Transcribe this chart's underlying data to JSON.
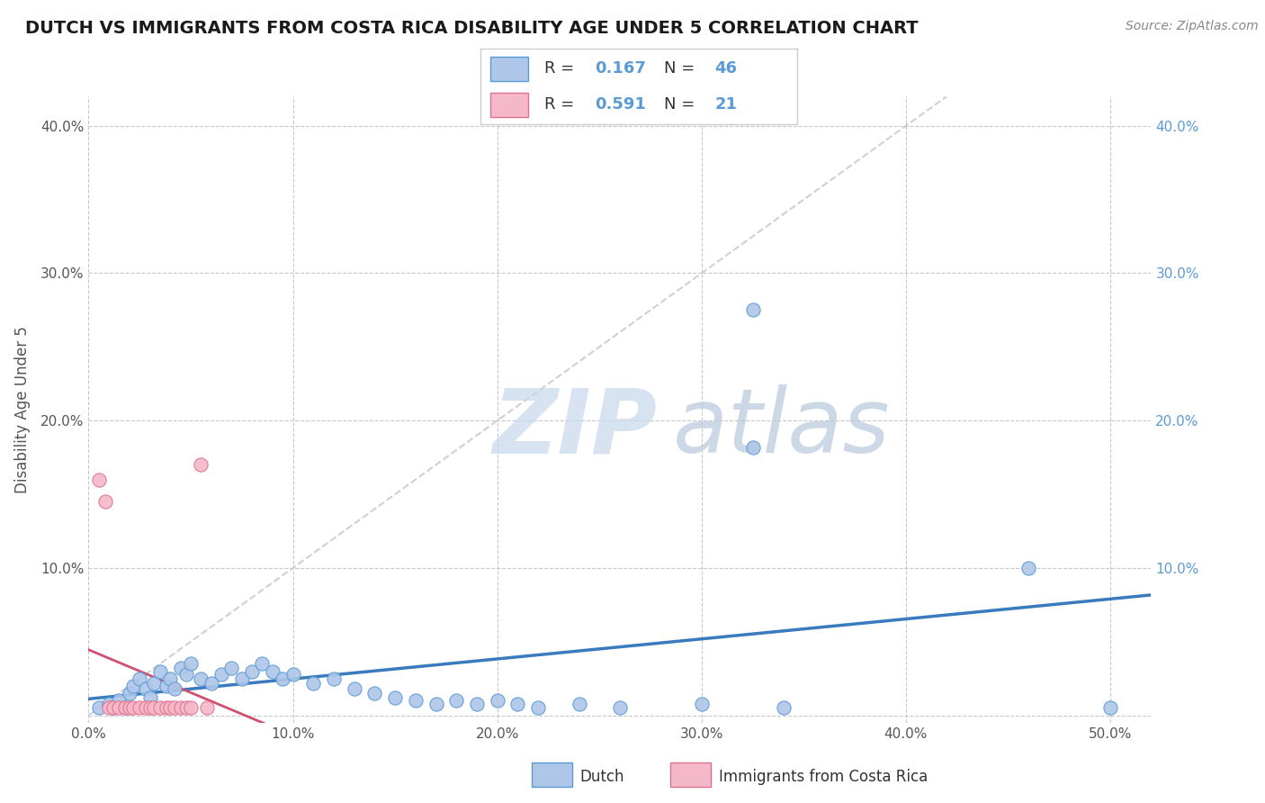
{
  "title": "DUTCH VS IMMIGRANTS FROM COSTA RICA DISABILITY AGE UNDER 5 CORRELATION CHART",
  "source": "Source: ZipAtlas.com",
  "ylabel": "Disability Age Under 5",
  "xlim": [
    0.0,
    0.52
  ],
  "ylim": [
    -0.005,
    0.42
  ],
  "xticks": [
    0.0,
    0.1,
    0.2,
    0.3,
    0.4,
    0.5
  ],
  "yticks": [
    0.0,
    0.1,
    0.2,
    0.3,
    0.4
  ],
  "xticklabels": [
    "0.0%",
    "10.0%",
    "20.0%",
    "30.0%",
    "40.0%",
    "50.0%"
  ],
  "yticklabels_left": [
    "",
    "10.0%",
    "20.0%",
    "30.0%",
    "40.0%"
  ],
  "yticklabels_right": [
    "",
    "10.0%",
    "20.0%",
    "30.0%",
    "40.0%"
  ],
  "background_color": "#ffffff",
  "grid_color": "#c8c8c8",
  "legend_R_dutch": "0.167",
  "legend_N_dutch": "46",
  "legend_R_costa": "0.591",
  "legend_N_costa": "21",
  "dutch_face_color": "#aec6e8",
  "dutch_edge_color": "#5b9bd5",
  "costa_face_color": "#f5b8c8",
  "costa_edge_color": "#e07090",
  "dutch_line_color": "#3a7bbf",
  "costa_line_color": "#d05070",
  "ref_line_color": "#d0d0d0",
  "dutch_scatter": [
    [
      0.005,
      0.005
    ],
    [
      0.01,
      0.008
    ],
    [
      0.012,
      0.005
    ],
    [
      0.015,
      0.01
    ],
    [
      0.018,
      0.005
    ],
    [
      0.02,
      0.015
    ],
    [
      0.022,
      0.02
    ],
    [
      0.025,
      0.025
    ],
    [
      0.028,
      0.018
    ],
    [
      0.03,
      0.012
    ],
    [
      0.032,
      0.022
    ],
    [
      0.035,
      0.03
    ],
    [
      0.038,
      0.02
    ],
    [
      0.04,
      0.025
    ],
    [
      0.042,
      0.018
    ],
    [
      0.045,
      0.032
    ],
    [
      0.048,
      0.028
    ],
    [
      0.05,
      0.035
    ],
    [
      0.055,
      0.025
    ],
    [
      0.06,
      0.022
    ],
    [
      0.065,
      0.028
    ],
    [
      0.07,
      0.032
    ],
    [
      0.075,
      0.025
    ],
    [
      0.08,
      0.03
    ],
    [
      0.085,
      0.035
    ],
    [
      0.09,
      0.03
    ],
    [
      0.095,
      0.025
    ],
    [
      0.1,
      0.028
    ],
    [
      0.11,
      0.022
    ],
    [
      0.12,
      0.025
    ],
    [
      0.13,
      0.018
    ],
    [
      0.14,
      0.015
    ],
    [
      0.15,
      0.012
    ],
    [
      0.16,
      0.01
    ],
    [
      0.17,
      0.008
    ],
    [
      0.18,
      0.01
    ],
    [
      0.19,
      0.008
    ],
    [
      0.2,
      0.01
    ],
    [
      0.21,
      0.008
    ],
    [
      0.22,
      0.005
    ],
    [
      0.24,
      0.008
    ],
    [
      0.26,
      0.005
    ],
    [
      0.3,
      0.008
    ],
    [
      0.34,
      0.005
    ],
    [
      0.46,
      0.1
    ],
    [
      0.5,
      0.005
    ]
  ],
  "costa_scatter": [
    [
      0.005,
      0.16
    ],
    [
      0.008,
      0.145
    ],
    [
      0.01,
      0.005
    ],
    [
      0.012,
      0.005
    ],
    [
      0.015,
      0.005
    ],
    [
      0.018,
      0.005
    ],
    [
      0.02,
      0.005
    ],
    [
      0.022,
      0.005
    ],
    [
      0.025,
      0.005
    ],
    [
      0.028,
      0.005
    ],
    [
      0.03,
      0.005
    ],
    [
      0.032,
      0.005
    ],
    [
      0.035,
      0.005
    ],
    [
      0.038,
      0.005
    ],
    [
      0.04,
      0.005
    ],
    [
      0.042,
      0.005
    ],
    [
      0.045,
      0.005
    ],
    [
      0.048,
      0.005
    ],
    [
      0.05,
      0.005
    ],
    [
      0.055,
      0.17
    ],
    [
      0.058,
      0.005
    ]
  ],
  "dutch_outlier1": [
    0.325,
    0.275
  ],
  "dutch_outlier2": [
    0.325,
    0.182
  ],
  "title_color": "#1a1a1a",
  "title_fontsize": 14,
  "source_fontsize": 10,
  "axis_label_fontsize": 12,
  "tick_fontsize": 11,
  "legend_fontsize": 13,
  "watermark_zip_color": "#c8d8ec",
  "watermark_atlas_color": "#b8c8dc"
}
